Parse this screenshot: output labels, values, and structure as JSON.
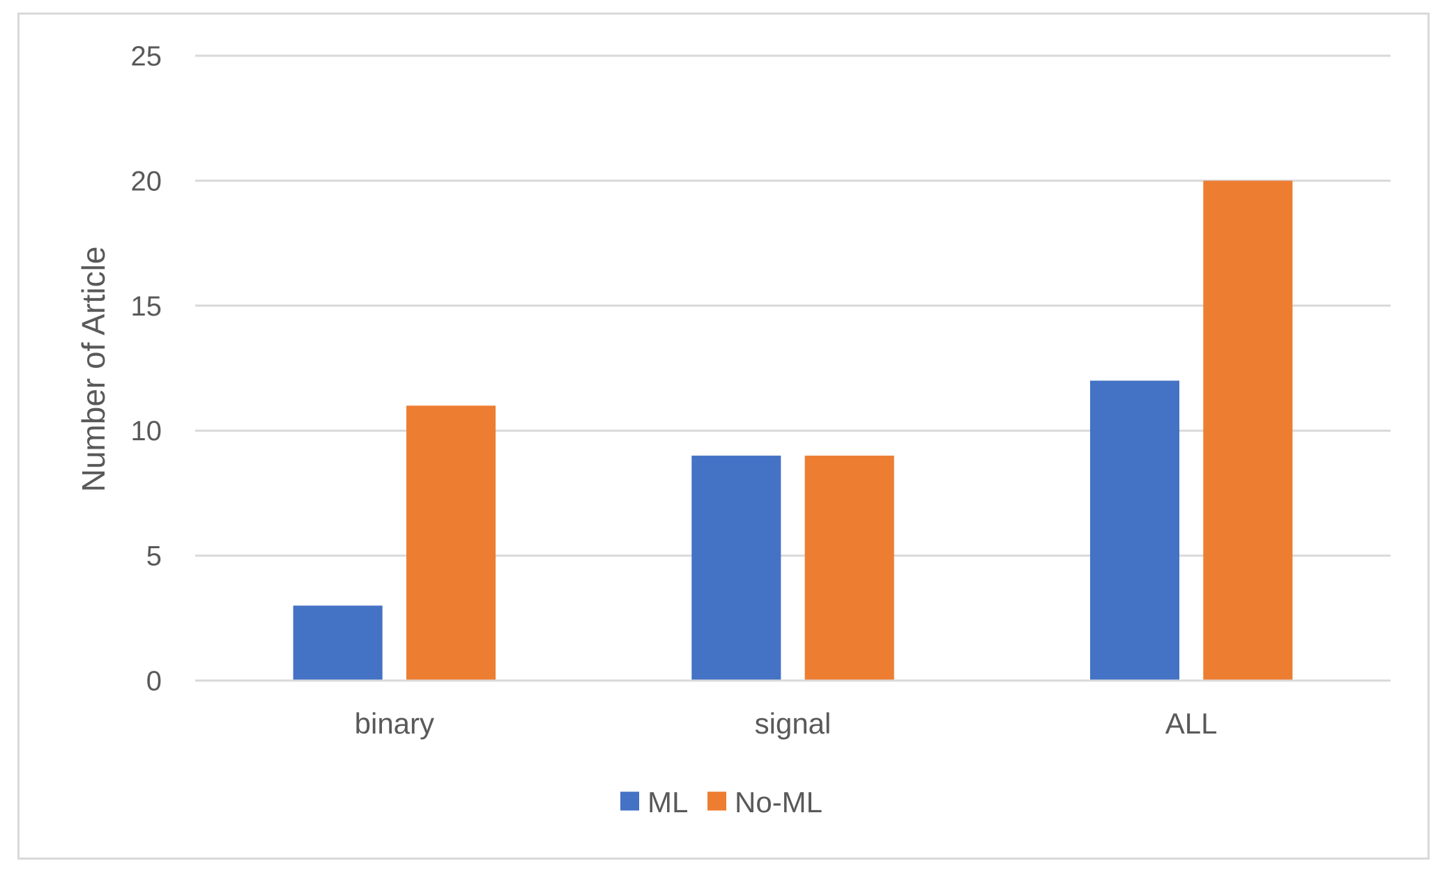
{
  "chart_data": {
    "type": "bar",
    "title": "",
    "xlabel": "",
    "ylabel": "Number of Article",
    "categories": [
      "binary",
      "signal",
      "ALL"
    ],
    "series": [
      {
        "name": "ML",
        "color": "#4472C4",
        "values": [
          3,
          9,
          12
        ]
      },
      {
        "name": "No-ML",
        "color": "#ED7D31",
        "values": [
          11,
          9,
          20
        ]
      }
    ],
    "ylim": [
      0,
      25
    ],
    "yticks": [
      0,
      5,
      10,
      15,
      20,
      25
    ],
    "grid": true,
    "gridline_color": "#d9d9d9",
    "legend_position": "bottom"
  }
}
